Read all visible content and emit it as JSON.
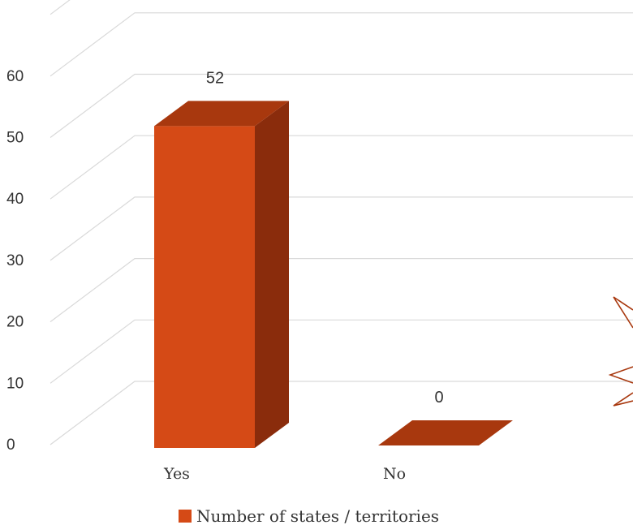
{
  "chart_data": {
    "type": "bar",
    "title": "",
    "xlabel": "",
    "ylabel": "",
    "categories": [
      "Yes",
      "No"
    ],
    "series": [
      {
        "name": "Number of states / territories",
        "values": [
          52,
          0
        ],
        "color": "#d54a16"
      }
    ],
    "data_labels": [
      "52",
      "0"
    ],
    "y_ticks": [
      "0",
      "10",
      "20",
      "30",
      "40",
      "50",
      "60"
    ],
    "ylim": [
      0,
      60
    ],
    "grid": true,
    "legend_position": "bottom",
    "style": "3d-column",
    "colors": {
      "bar_front": "#d54a16",
      "bar_top": "#a8380e",
      "bar_side": "#8a2c0c",
      "grid": "#d9d9d9",
      "text": "#333333",
      "decoration_stroke": "#a8380e"
    }
  }
}
